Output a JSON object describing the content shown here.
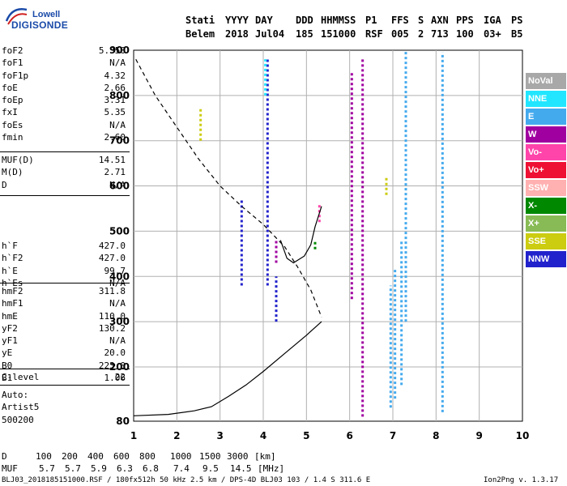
{
  "logo": {
    "line1": "Lowell",
    "line2": "DIGISONDE"
  },
  "header": {
    "labels": [
      "Stati",
      "YYYY",
      "DAY",
      "DDD",
      "HHMMSS",
      "P1",
      "FFS",
      "S",
      "AXN",
      "PPS",
      "IGA",
      "PS"
    ],
    "values": [
      "Belem",
      "2018",
      "Jul04",
      "185",
      "151000",
      "RSF",
      "005",
      "2",
      "713",
      "100",
      "03+",
      "B5"
    ]
  },
  "params": {
    "group1": [
      {
        "name": "foF2",
        "value": "5.350"
      },
      {
        "name": "foF1",
        "value": "N/A"
      },
      {
        "name": "foF1p",
        "value": "4.32"
      },
      {
        "name": "foE",
        "value": "2.66"
      },
      {
        "name": "foEp",
        "value": "3.31"
      },
      {
        "name": "fxI",
        "value": "5.35"
      },
      {
        "name": "foEs",
        "value": "N/A"
      },
      {
        "name": "fmin",
        "value": "2.60"
      }
    ],
    "group2": [
      {
        "name": "MUF(D)",
        "value": "14.51"
      },
      {
        "name": "M(D)",
        "value": "2.71"
      },
      {
        "name": "D",
        "value": "N/A"
      }
    ],
    "group3": [
      {
        "name": "h`F",
        "value": "427.0"
      },
      {
        "name": "h`F2",
        "value": "427.0"
      },
      {
        "name": "h`E",
        "value": "99.7"
      },
      {
        "name": "h`Es",
        "value": "N/A"
      }
    ],
    "group4": [
      {
        "name": "hmF2",
        "value": "311.8"
      },
      {
        "name": "hmF1",
        "value": "N/A"
      },
      {
        "name": "hmE",
        "value": "110.0"
      },
      {
        "name": "yF2",
        "value": "130.2"
      },
      {
        "name": "yF1",
        "value": "N/A"
      },
      {
        "name": "yE",
        "value": "20.0"
      },
      {
        "name": "B0",
        "value": "223.0"
      },
      {
        "name": "B1",
        "value": "1.06"
      }
    ],
    "group5": [
      {
        "name": "C-level",
        "value": "22"
      }
    ],
    "group6": [
      {
        "name": "Auto:",
        "value": ""
      },
      {
        "name": "Artist5",
        "value": ""
      },
      {
        "name": "500200",
        "value": ""
      }
    ]
  },
  "legend": [
    {
      "label": "NoVal",
      "color": "#a8a8a8"
    },
    {
      "label": "NNE",
      "color": "#22e6ff"
    },
    {
      "label": "E",
      "color": "#44aaee"
    },
    {
      "label": "W",
      "color": "#a000a0"
    },
    {
      "label": "Vo-",
      "color": "#ff44aa"
    },
    {
      "label": "Vo+",
      "color": "#ee1133"
    },
    {
      "label": "SSW",
      "color": "#ffb0b0"
    },
    {
      "label": "X-",
      "color": "#008800"
    },
    {
      "label": "X+",
      "color": "#88bb55"
    },
    {
      "label": "SSE",
      "color": "#cccc11"
    },
    {
      "label": "NNW",
      "color": "#2222cc"
    }
  ],
  "footer": {
    "d_row_label": "D",
    "d_values": [
      "100",
      "200",
      "400",
      "600",
      "800",
      "1000",
      "1500",
      "3000",
      "[km]"
    ],
    "muf_row_label": "MUF",
    "muf_values": [
      "5.7",
      "5.7",
      "5.9",
      "6.3",
      "6.8",
      "7.4",
      "9.5",
      "14.5",
      "[MHz]"
    ],
    "info": "BLJ03_2018185151000.RSF / 180fx512h 50 kHz 2.5 km / DPS-4D BLJ03 103 / 1.4 S 311.6 E",
    "version": "Ion2Png v. 1.3.17"
  },
  "chart_data": {
    "type": "scatter",
    "title": "",
    "xlabel": "",
    "ylabel": "",
    "xlim": [
      1,
      10
    ],
    "ylim": [
      80,
      900
    ],
    "xticks": [
      1,
      2,
      3,
      4,
      5,
      6,
      7,
      8,
      9,
      10
    ],
    "yticks": [
      80,
      200,
      300,
      400,
      500,
      600,
      700,
      800,
      900
    ],
    "grid": true,
    "series": [
      {
        "legend": "E",
        "color": "#44aaee",
        "segments": [
          [
            8.15,
            100,
            895
          ],
          [
            7.2,
            160,
            480
          ],
          [
            7.05,
            130,
            420
          ],
          [
            7.3,
            300,
            900
          ],
          [
            6.95,
            110,
            380
          ]
        ]
      },
      {
        "legend": "W",
        "color": "#a000a0",
        "segments": [
          [
            6.3,
            90,
            880
          ],
          [
            6.05,
            350,
            850
          ],
          [
            4.3,
            430,
            480
          ]
        ]
      },
      {
        "legend": "NNW",
        "color": "#2222cc",
        "segments": [
          [
            4.1,
            380,
            880
          ],
          [
            3.5,
            380,
            570
          ],
          [
            4.3,
            300,
            400
          ]
        ]
      },
      {
        "legend": "NNE",
        "color": "#22e6ff",
        "segments": [
          [
            4.05,
            800,
            880
          ]
        ]
      },
      {
        "legend": "SSE",
        "color": "#cccc11",
        "segments": [
          [
            2.55,
            700,
            770
          ],
          [
            6.85,
            580,
            620
          ]
        ]
      },
      {
        "legend": "Vo-",
        "color": "#ff44aa",
        "segments": [
          [
            5.3,
            520,
            560
          ]
        ]
      },
      {
        "legend": "X-",
        "color": "#008800",
        "segments": [
          [
            5.2,
            460,
            480
          ]
        ]
      }
    ],
    "curves": [
      {
        "style": "dashed",
        "points": [
          [
            1.05,
            880
          ],
          [
            1.5,
            800
          ],
          [
            2.0,
            730
          ],
          [
            2.5,
            660
          ],
          [
            3.0,
            600
          ],
          [
            3.5,
            555
          ],
          [
            4.0,
            515
          ],
          [
            4.5,
            465
          ],
          [
            4.8,
            420
          ],
          [
            5.1,
            370
          ],
          [
            5.35,
            310
          ]
        ]
      },
      {
        "style": "solid",
        "points": [
          [
            1.0,
            92
          ],
          [
            1.8,
            95
          ],
          [
            2.4,
            103
          ],
          [
            2.8,
            112
          ],
          [
            3.2,
            135
          ],
          [
            3.6,
            160
          ],
          [
            4.0,
            190
          ],
          [
            4.5,
            230
          ],
          [
            5.0,
            270
          ],
          [
            5.35,
            300
          ]
        ]
      },
      {
        "style": "solid",
        "points": [
          [
            4.4,
            480
          ],
          [
            4.55,
            440
          ],
          [
            4.7,
            430
          ],
          [
            4.95,
            445
          ],
          [
            5.1,
            470
          ],
          [
            5.2,
            510
          ],
          [
            5.35,
            555
          ]
        ]
      }
    ]
  }
}
